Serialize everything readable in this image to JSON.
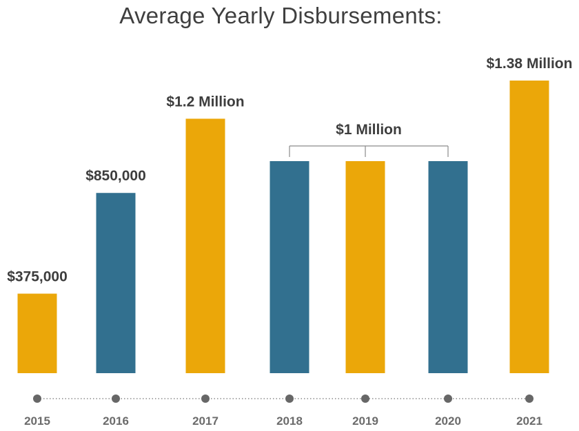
{
  "colors": {
    "gold": "#EBA709",
    "teal": "#32708F",
    "text": "#3d3d3d",
    "axis_text": "#6b6b6b",
    "dot": "#676767"
  },
  "chart_data": {
    "type": "bar",
    "title": "Average Yearly Disbursements:",
    "categories": [
      "2015",
      "2016",
      "2017",
      "2018",
      "2019",
      "2020",
      "2021"
    ],
    "values": [
      375000,
      850000,
      1200000,
      1000000,
      1000000,
      1000000,
      1380000
    ],
    "bar_colors": [
      "gold",
      "teal",
      "gold",
      "teal",
      "gold",
      "teal",
      "gold"
    ],
    "data_labels": [
      "$375,000",
      "$850,000",
      "$1.2 Million",
      "",
      "",
      "",
      "$1.38 Million"
    ],
    "group_annotation": {
      "label": "$1 Million",
      "categories": [
        "2018",
        "2019",
        "2020"
      ]
    },
    "ylim": [
      0,
      1380000
    ],
    "grid": false,
    "legend": "none"
  }
}
